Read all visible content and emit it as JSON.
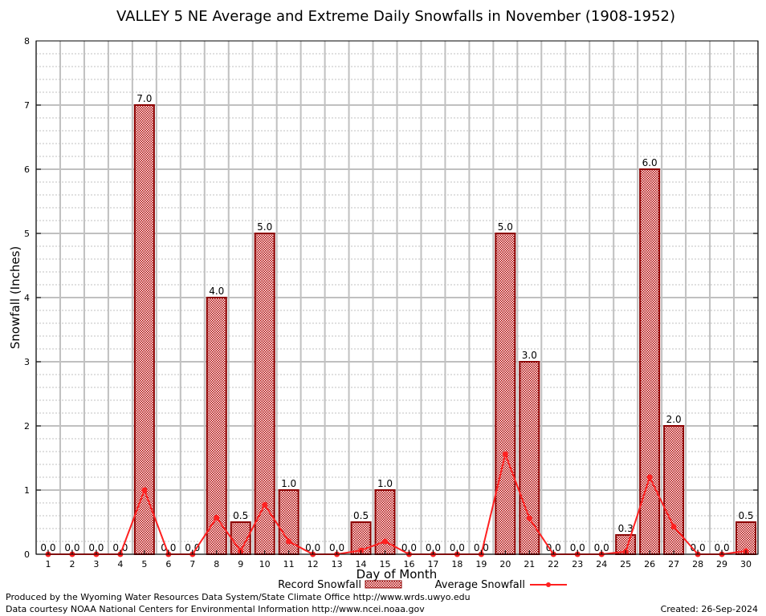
{
  "chart_data": {
    "type": "bar",
    "title": "VALLEY 5 NE Average and Extreme Daily Snowfalls in November (1908-1952)",
    "xlabel": "Day of Month",
    "ylabel": "Snowfall (Inches)",
    "ylim": [
      0,
      8
    ],
    "yticks": [
      "0",
      "1",
      "2",
      "3",
      "4",
      "5",
      "6",
      "7",
      "8"
    ],
    "grid": true,
    "categories": [
      "1",
      "2",
      "3",
      "4",
      "5",
      "6",
      "7",
      "8",
      "9",
      "10",
      "11",
      "12",
      "13",
      "14",
      "15",
      "16",
      "17",
      "18",
      "19",
      "20",
      "21",
      "22",
      "23",
      "24",
      "25",
      "26",
      "27",
      "28",
      "29",
      "30"
    ],
    "series": [
      {
        "name": "Record Snowfall",
        "type": "bar",
        "values": [
          0,
          0,
          0,
          0,
          7.0,
          0,
          0,
          4.0,
          0.5,
          5.0,
          1.0,
          0,
          0,
          0.5,
          1.0,
          0,
          0,
          0,
          0,
          5.0,
          3.0,
          0,
          0,
          0,
          0.3,
          6.0,
          2.0,
          0,
          0,
          0.5
        ],
        "labels": [
          "0.0",
          "0.0",
          "0.0",
          "0.0",
          "7.0",
          "0.0",
          "0.0",
          "4.0",
          "0.5",
          "5.0",
          "1.0",
          "0.0",
          "0.0",
          "0.5",
          "1.0",
          "0.0",
          "0.0",
          "0.0",
          "0.0",
          "5.0",
          "3.0",
          "0.0",
          "0.0",
          "0.0",
          "0.3",
          "6.0",
          "2.0",
          "0.0",
          "0.0",
          "0.5"
        ]
      },
      {
        "name": "Average Snowfall",
        "type": "line",
        "values": [
          0,
          0,
          0,
          0,
          1.0,
          0,
          0,
          0.57,
          0.05,
          0.77,
          0.2,
          0,
          0,
          0.06,
          0.2,
          0,
          0,
          0,
          0,
          1.56,
          0.56,
          0,
          0,
          0,
          0.04,
          1.2,
          0.43,
          0,
          0,
          0.05
        ]
      }
    ],
    "legend_position": "bottom"
  },
  "colors": {
    "bar_fill": "#c00000",
    "bar_edge": "#8b0000",
    "line": "#ff2020",
    "grid": "#c0c0c0"
  },
  "footer": {
    "produced": "Produced by the Wyoming Water Resources Data System/State Climate Office http://www.wrds.uwyo.edu",
    "courtesy": "Data courtesy NOAA National Centers for Environmental Information http://www.ncei.noaa.gov",
    "created": "Created: 26-Sep-2024"
  }
}
